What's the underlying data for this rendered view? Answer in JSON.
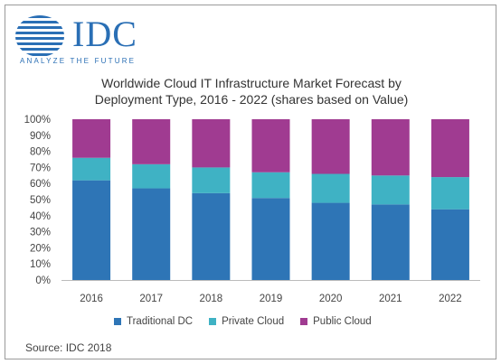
{
  "logo": {
    "name": "IDC",
    "tagline": "ANALYZE THE FUTURE"
  },
  "title_line1": "Worldwide Cloud IT Infrastructure Market Forecast by",
  "title_line2": "Deployment Type, 2016 - 2022 (shares based on Value)",
  "source": "Source: IDC 2018",
  "chart_data": {
    "type": "bar",
    "stacked": true,
    "categories": [
      "2016",
      "2017",
      "2018",
      "2019",
      "2020",
      "2021",
      "2022"
    ],
    "series": [
      {
        "name": "Traditional DC",
        "color": "#2e75b6",
        "values": [
          62,
          57,
          54,
          51,
          48,
          47,
          44
        ]
      },
      {
        "name": "Private Cloud",
        "color": "#3fb2c4",
        "values": [
          14,
          15,
          16,
          16,
          18,
          18,
          20
        ]
      },
      {
        "name": "Public Cloud",
        "color": "#a03b91",
        "values": [
          24,
          28,
          30,
          33,
          34,
          35,
          36
        ]
      }
    ],
    "y_ticks": [
      "0%",
      "10%",
      "20%",
      "30%",
      "40%",
      "50%",
      "60%",
      "70%",
      "80%",
      "90%",
      "100%"
    ],
    "ylim": [
      0,
      100
    ],
    "grid": false,
    "legend_position": "bottom"
  }
}
